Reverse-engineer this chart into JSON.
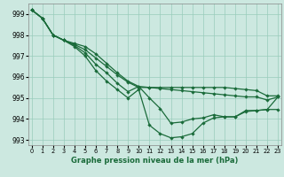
{
  "title": "Graphe pression niveau de la mer (hPa)",
  "bg_color": "#cce8e0",
  "grid_color": "#99ccbb",
  "line_color": "#1a6b3a",
  "ylim": [
    992.75,
    999.5
  ],
  "yticks": [
    993,
    994,
    995,
    996,
    997,
    998,
    999
  ],
  "xlim": [
    -0.3,
    23.3
  ],
  "xticks": [
    0,
    1,
    2,
    3,
    4,
    5,
    6,
    7,
    8,
    9,
    10,
    11,
    12,
    13,
    14,
    15,
    16,
    17,
    18,
    19,
    20,
    21,
    22,
    23
  ],
  "lines": [
    [
      999.2,
      998.8,
      998.0,
      997.75,
      997.6,
      997.45,
      997.1,
      996.65,
      996.2,
      995.8,
      995.55,
      995.5,
      995.5,
      995.5,
      995.5,
      995.5,
      995.5,
      995.5,
      995.5,
      995.45,
      995.4,
      995.35,
      995.1,
      995.1
    ],
    [
      999.2,
      998.8,
      998.0,
      997.75,
      997.55,
      997.3,
      996.9,
      996.5,
      996.1,
      995.75,
      995.5,
      995.5,
      995.45,
      995.4,
      995.35,
      995.3,
      995.25,
      995.2,
      995.15,
      995.1,
      995.05,
      995.05,
      994.9,
      995.05
    ],
    [
      999.2,
      998.8,
      998.0,
      997.75,
      997.5,
      997.15,
      996.6,
      996.2,
      995.7,
      995.3,
      995.55,
      995.0,
      994.5,
      993.8,
      993.85,
      994.0,
      994.05,
      994.2,
      994.1,
      994.1,
      994.4,
      994.4,
      994.45,
      994.45
    ],
    [
      999.2,
      998.8,
      998.0,
      997.75,
      997.45,
      997.0,
      996.3,
      995.8,
      995.4,
      995.0,
      995.4,
      993.7,
      993.3,
      993.1,
      993.15,
      993.3,
      993.8,
      994.05,
      994.1,
      994.1,
      994.35,
      994.4,
      994.45,
      995.05
    ]
  ]
}
